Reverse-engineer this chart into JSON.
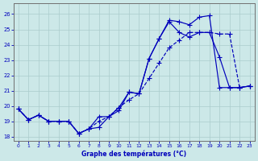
{
  "xlabel": "Graphe des températures (°C)",
  "ylim": [
    17.7,
    26.7
  ],
  "xlim": [
    -0.5,
    23.5
  ],
  "yticks": [
    18,
    19,
    20,
    21,
    22,
    23,
    24,
    25,
    26
  ],
  "xticks": [
    0,
    1,
    2,
    3,
    4,
    5,
    6,
    7,
    8,
    9,
    10,
    11,
    12,
    13,
    14,
    15,
    16,
    17,
    18,
    19,
    20,
    21,
    22,
    23
  ],
  "bg_color": "#cce8e8",
  "grid_color": "#aacccc",
  "line_color": "#0000bb",
  "series1": [
    19.8,
    19.1,
    19.4,
    19.0,
    19.0,
    19.0,
    18.2,
    18.5,
    18.6,
    19.3,
    19.7,
    20.9,
    20.8,
    23.1,
    24.4,
    25.5,
    24.8,
    24.5,
    24.8,
    24.8,
    23.2,
    21.2,
    21.2,
    21.3
  ],
  "series2": [
    19.8,
    19.1,
    19.4,
    19.0,
    19.0,
    19.0,
    18.2,
    18.5,
    19.3,
    19.3,
    19.9,
    20.9,
    20.8,
    23.1,
    24.4,
    25.6,
    25.5,
    25.3,
    25.8,
    25.9,
    21.2,
    21.2,
    21.2,
    21.3
  ],
  "series3": [
    19.8,
    19.1,
    19.4,
    19.0,
    19.0,
    19.0,
    18.2,
    18.5,
    19.0,
    19.3,
    19.9,
    20.4,
    20.8,
    21.8,
    22.8,
    23.8,
    24.3,
    24.8,
    24.8,
    24.8,
    24.7,
    24.7,
    21.2,
    21.3
  ],
  "figsize": [
    3.2,
    2.0
  ],
  "dpi": 100
}
